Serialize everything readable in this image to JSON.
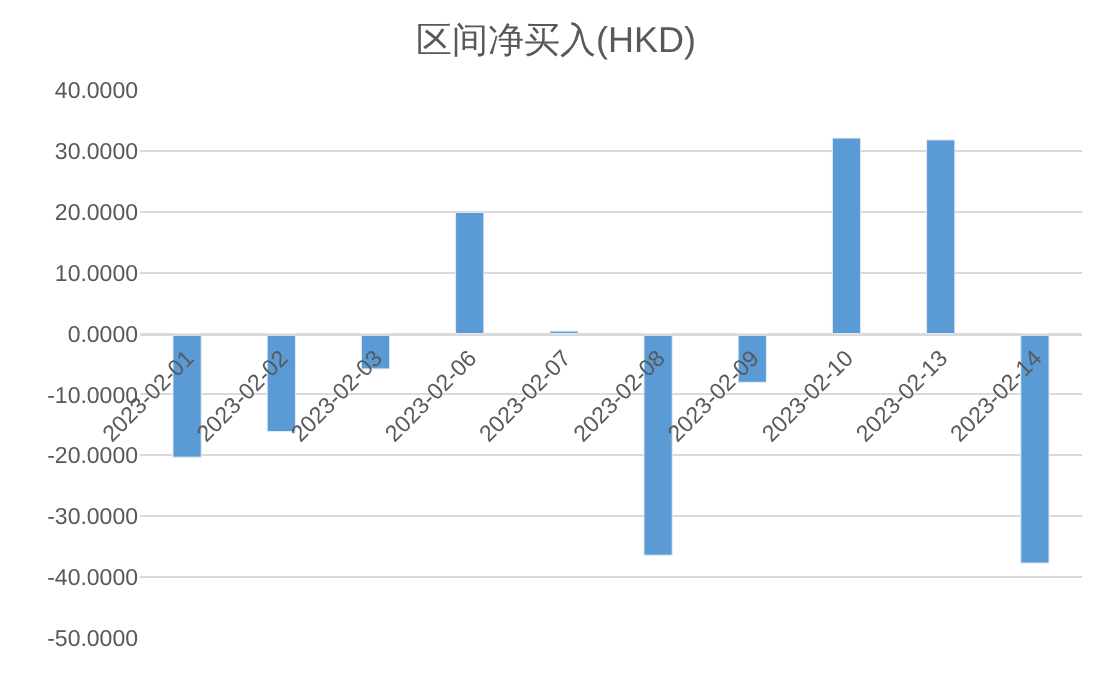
{
  "chart_data": {
    "type": "bar",
    "title": "区间净买入(HKD)",
    "categories": [
      "2023-02-01",
      "2023-02-02",
      "2023-02-03",
      "2023-02-06",
      "2023-02-07",
      "2023-02-08",
      "2023-02-09",
      "2023-02-10",
      "2023-02-13",
      "2023-02-14"
    ],
    "values": [
      -20.3,
      -16.1,
      -5.8,
      19.9,
      0.4,
      -36.4,
      -8.0,
      32.1,
      31.8,
      -37.7
    ],
    "color": "#5b9bd5",
    "ylim": [
      -50,
      40
    ],
    "yticks": [
      {
        "value": -50,
        "label": "-50.0000"
      },
      {
        "value": -40,
        "label": "-40.0000"
      },
      {
        "value": -30,
        "label": "-30.0000"
      },
      {
        "value": -20,
        "label": "-20.0000"
      },
      {
        "value": -10,
        "label": "-10.0000"
      },
      {
        "value": 0,
        "label": "0.0000"
      },
      {
        "value": 10,
        "label": "10.0000"
      },
      {
        "value": 20,
        "label": "20.0000"
      },
      {
        "value": 30,
        "label": "30.0000"
      },
      {
        "value": 40,
        "label": "40.0000"
      }
    ],
    "grid": "y",
    "legend": false
  }
}
